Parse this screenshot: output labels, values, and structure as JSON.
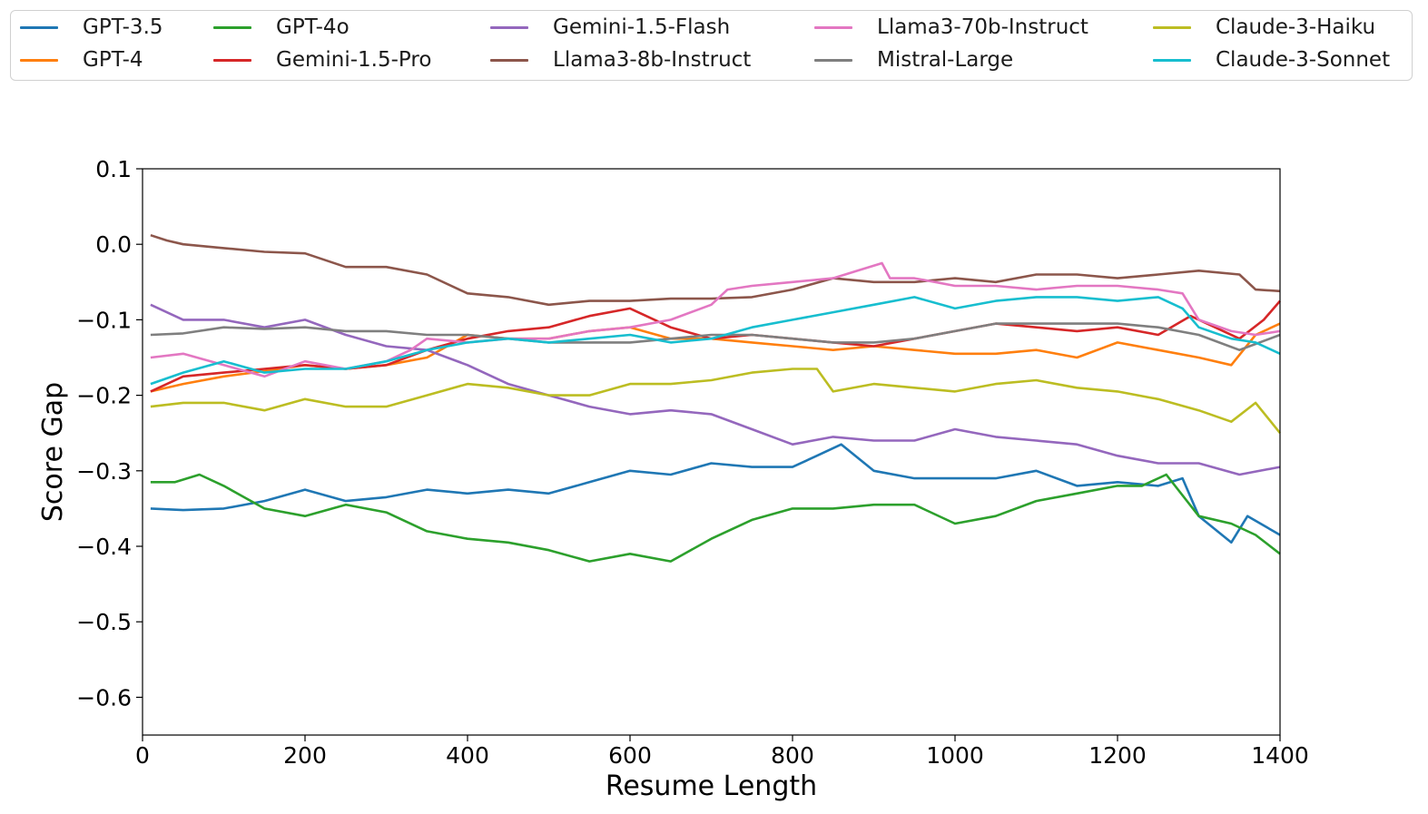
{
  "chart_data": {
    "type": "line",
    "title": "",
    "xlabel": "Resume Length",
    "ylabel": "Score Gap",
    "xlim": [
      0,
      1400
    ],
    "ylim": [
      -0.65,
      0.1
    ],
    "xticks": [
      0,
      200,
      400,
      600,
      800,
      1000,
      1200,
      1400
    ],
    "xtick_labels": [
      "0",
      "200",
      "400",
      "600",
      "800",
      "1000",
      "1200",
      "1400"
    ],
    "yticks": [
      0.1,
      0.0,
      -0.1,
      -0.2,
      -0.3,
      -0.4,
      -0.5,
      -0.6
    ],
    "ytick_labels": [
      "0.1",
      "0.0",
      "−0.1",
      "−0.2",
      "−0.3",
      "−0.4",
      "−0.5",
      "−0.6"
    ],
    "grid": false,
    "legend_position": "top, outside, 5 columns",
    "series": [
      {
        "name": "GPT-3.5",
        "color": "#1f77b4",
        "x": [
          10,
          50,
          100,
          150,
          200,
          250,
          300,
          350,
          400,
          450,
          500,
          550,
          600,
          650,
          700,
          750,
          800,
          830,
          860,
          900,
          950,
          1000,
          1050,
          1100,
          1150,
          1200,
          1250,
          1280,
          1300,
          1340,
          1360,
          1400
        ],
        "y": [
          -0.35,
          -0.352,
          -0.35,
          -0.34,
          -0.325,
          -0.34,
          -0.335,
          -0.325,
          -0.33,
          -0.325,
          -0.33,
          -0.315,
          -0.3,
          -0.305,
          -0.29,
          -0.295,
          -0.295,
          -0.28,
          -0.265,
          -0.3,
          -0.31,
          -0.31,
          -0.31,
          -0.3,
          -0.32,
          -0.315,
          -0.32,
          -0.31,
          -0.36,
          -0.395,
          -0.36,
          -0.385
        ]
      },
      {
        "name": "GPT-4",
        "color": "#ff7f0e",
        "x": [
          10,
          50,
          100,
          150,
          200,
          250,
          300,
          350,
          400,
          450,
          500,
          550,
          600,
          650,
          700,
          750,
          800,
          850,
          900,
          950,
          1000,
          1050,
          1100,
          1150,
          1200,
          1250,
          1300,
          1340,
          1370,
          1400
        ],
        "y": [
          -0.195,
          -0.185,
          -0.175,
          -0.168,
          -0.16,
          -0.165,
          -0.16,
          -0.15,
          -0.12,
          -0.125,
          -0.125,
          -0.115,
          -0.11,
          -0.125,
          -0.125,
          -0.13,
          -0.135,
          -0.14,
          -0.135,
          -0.14,
          -0.145,
          -0.145,
          -0.14,
          -0.15,
          -0.13,
          -0.14,
          -0.15,
          -0.16,
          -0.12,
          -0.105
        ]
      },
      {
        "name": "GPT-4o",
        "color": "#2ca02c",
        "x": [
          10,
          40,
          70,
          100,
          150,
          200,
          250,
          300,
          350,
          400,
          450,
          500,
          550,
          600,
          650,
          700,
          750,
          800,
          850,
          900,
          950,
          1000,
          1050,
          1100,
          1150,
          1200,
          1230,
          1260,
          1300,
          1340,
          1370,
          1400
        ],
        "y": [
          -0.315,
          -0.315,
          -0.305,
          -0.32,
          -0.35,
          -0.36,
          -0.345,
          -0.355,
          -0.38,
          -0.39,
          -0.395,
          -0.405,
          -0.42,
          -0.41,
          -0.42,
          -0.39,
          -0.365,
          -0.35,
          -0.35,
          -0.345,
          -0.345,
          -0.37,
          -0.36,
          -0.34,
          -0.33,
          -0.32,
          -0.32,
          -0.305,
          -0.36,
          -0.37,
          -0.385,
          -0.41
        ]
      },
      {
        "name": "Gemini-1.5-Pro",
        "color": "#d62728",
        "x": [
          10,
          50,
          100,
          150,
          200,
          250,
          300,
          350,
          400,
          450,
          500,
          550,
          600,
          650,
          700,
          750,
          800,
          850,
          900,
          950,
          1000,
          1050,
          1100,
          1150,
          1200,
          1250,
          1290,
          1320,
          1350,
          1380,
          1400
        ],
        "y": [
          -0.195,
          -0.175,
          -0.17,
          -0.165,
          -0.16,
          -0.165,
          -0.16,
          -0.14,
          -0.125,
          -0.115,
          -0.11,
          -0.095,
          -0.085,
          -0.11,
          -0.125,
          -0.12,
          -0.125,
          -0.13,
          -0.135,
          -0.125,
          -0.115,
          -0.105,
          -0.11,
          -0.115,
          -0.11,
          -0.12,
          -0.095,
          -0.11,
          -0.125,
          -0.1,
          -0.075
        ]
      },
      {
        "name": "Gemini-1.5-Flash",
        "color": "#9467bd",
        "x": [
          10,
          50,
          100,
          150,
          200,
          250,
          300,
          350,
          400,
          450,
          500,
          550,
          600,
          650,
          700,
          750,
          800,
          850,
          900,
          950,
          1000,
          1050,
          1100,
          1150,
          1200,
          1250,
          1300,
          1350,
          1400
        ],
        "y": [
          -0.08,
          -0.1,
          -0.1,
          -0.11,
          -0.1,
          -0.12,
          -0.135,
          -0.14,
          -0.16,
          -0.185,
          -0.2,
          -0.215,
          -0.225,
          -0.22,
          -0.225,
          -0.245,
          -0.265,
          -0.255,
          -0.26,
          -0.26,
          -0.245,
          -0.255,
          -0.26,
          -0.265,
          -0.28,
          -0.29,
          -0.29,
          -0.305,
          -0.295
        ]
      },
      {
        "name": "Llama3-8b-Instruct",
        "color": "#8c564b",
        "x": [
          10,
          30,
          50,
          100,
          150,
          200,
          250,
          300,
          350,
          400,
          450,
          500,
          550,
          600,
          650,
          700,
          750,
          800,
          850,
          900,
          950,
          1000,
          1050,
          1100,
          1150,
          1200,
          1250,
          1300,
          1350,
          1370,
          1400
        ],
        "y": [
          0.012,
          0.005,
          0.0,
          -0.005,
          -0.01,
          -0.012,
          -0.03,
          -0.03,
          -0.04,
          -0.065,
          -0.07,
          -0.08,
          -0.075,
          -0.075,
          -0.072,
          -0.072,
          -0.07,
          -0.06,
          -0.045,
          -0.05,
          -0.05,
          -0.045,
          -0.05,
          -0.04,
          -0.04,
          -0.045,
          -0.04,
          -0.035,
          -0.04,
          -0.06,
          -0.062
        ]
      },
      {
        "name": "Llama3-70b-Instruct",
        "color": "#e377c2",
        "x": [
          10,
          50,
          100,
          150,
          200,
          250,
          300,
          330,
          350,
          400,
          450,
          500,
          550,
          600,
          650,
          700,
          720,
          750,
          800,
          850,
          880,
          910,
          920,
          950,
          1000,
          1050,
          1100,
          1150,
          1200,
          1250,
          1280,
          1300,
          1340,
          1370,
          1400
        ],
        "y": [
          -0.15,
          -0.145,
          -0.16,
          -0.175,
          -0.155,
          -0.165,
          -0.155,
          -0.14,
          -0.125,
          -0.13,
          -0.125,
          -0.125,
          -0.115,
          -0.11,
          -0.1,
          -0.08,
          -0.06,
          -0.055,
          -0.05,
          -0.045,
          -0.035,
          -0.025,
          -0.045,
          -0.045,
          -0.055,
          -0.055,
          -0.06,
          -0.055,
          -0.055,
          -0.06,
          -0.065,
          -0.1,
          -0.115,
          -0.12,
          -0.115
        ]
      },
      {
        "name": "Mistral-Large",
        "color": "#7f7f7f",
        "x": [
          10,
          50,
          100,
          150,
          200,
          250,
          300,
          350,
          400,
          450,
          500,
          550,
          600,
          650,
          700,
          750,
          800,
          850,
          900,
          950,
          1000,
          1050,
          1100,
          1150,
          1200,
          1250,
          1300,
          1350,
          1400
        ],
        "y": [
          -0.12,
          -0.118,
          -0.11,
          -0.112,
          -0.11,
          -0.115,
          -0.115,
          -0.12,
          -0.12,
          -0.125,
          -0.13,
          -0.13,
          -0.13,
          -0.125,
          -0.12,
          -0.12,
          -0.125,
          -0.13,
          -0.13,
          -0.125,
          -0.115,
          -0.105,
          -0.105,
          -0.105,
          -0.105,
          -0.11,
          -0.12,
          -0.14,
          -0.12
        ]
      },
      {
        "name": "Claude-3-Haiku",
        "color": "#bcbd22",
        "x": [
          10,
          50,
          100,
          150,
          200,
          250,
          300,
          350,
          400,
          450,
          500,
          550,
          600,
          650,
          700,
          750,
          800,
          830,
          850,
          900,
          950,
          1000,
          1050,
          1100,
          1150,
          1200,
          1250,
          1300,
          1340,
          1370,
          1400
        ],
        "y": [
          -0.215,
          -0.21,
          -0.21,
          -0.22,
          -0.205,
          -0.215,
          -0.215,
          -0.2,
          -0.185,
          -0.19,
          -0.2,
          -0.2,
          -0.185,
          -0.185,
          -0.18,
          -0.17,
          -0.165,
          -0.165,
          -0.195,
          -0.185,
          -0.19,
          -0.195,
          -0.185,
          -0.18,
          -0.19,
          -0.195,
          -0.205,
          -0.22,
          -0.235,
          -0.21,
          -0.25
        ]
      },
      {
        "name": "Claude-3-Sonnet",
        "color": "#17becf",
        "x": [
          10,
          50,
          100,
          150,
          200,
          250,
          300,
          350,
          400,
          450,
          500,
          550,
          600,
          650,
          700,
          750,
          800,
          850,
          900,
          950,
          1000,
          1050,
          1100,
          1150,
          1200,
          1250,
          1280,
          1300,
          1340,
          1370,
          1400
        ],
        "y": [
          -0.185,
          -0.17,
          -0.155,
          -0.17,
          -0.165,
          -0.165,
          -0.155,
          -0.14,
          -0.13,
          -0.125,
          -0.13,
          -0.125,
          -0.12,
          -0.13,
          -0.125,
          -0.11,
          -0.1,
          -0.09,
          -0.08,
          -0.07,
          -0.085,
          -0.075,
          -0.07,
          -0.07,
          -0.075,
          -0.07,
          -0.085,
          -0.11,
          -0.125,
          -0.13,
          -0.145
        ]
      }
    ]
  }
}
